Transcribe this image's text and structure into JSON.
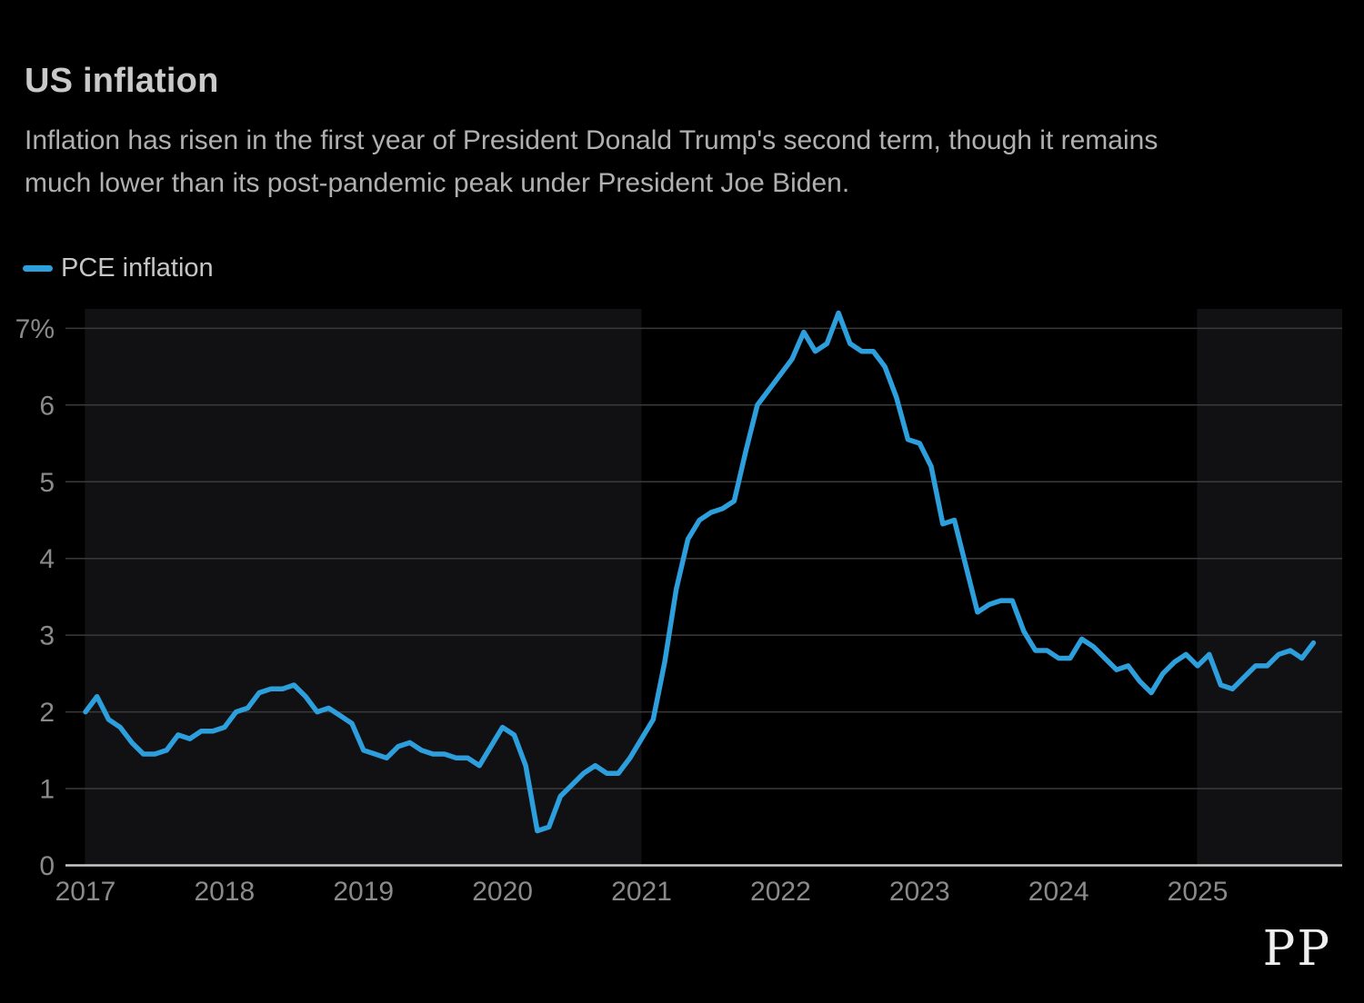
{
  "header": {
    "title": "US inflation",
    "subtitle_lines": [
      "Inflation has risen in the first year of President Donald Trump's second term, though it remains",
      "much lower than its post-pandemic peak under President Joe Biden."
    ]
  },
  "legend": {
    "label": "PCE inflation"
  },
  "logo": {
    "text": "PP"
  },
  "colors": {
    "background": "#000000",
    "line": "#2d9fdd",
    "panel": "#111113",
    "grid": "#3a3a3a",
    "baseline": "#c9c9c9",
    "axis_text": "#8a8a8a",
    "title": "#c9c9c9",
    "subtitle": "#b0b0b0"
  },
  "chart_data": {
    "type": "line",
    "title": "US inflation",
    "ylabel": "",
    "xlabel": "",
    "unit": "%",
    "ylim": [
      0,
      7.3
    ],
    "grid": "horizontal",
    "y_ticks": [
      0,
      1,
      2,
      3,
      4,
      5,
      6,
      7
    ],
    "y_tick_labels": [
      "0",
      "1",
      "2",
      "3",
      "4",
      "5",
      "6",
      "7%"
    ],
    "x_tick_labels": [
      "2017",
      "2018",
      "2019",
      "2020",
      "2021",
      "2022",
      "2023",
      "2024",
      "2025"
    ],
    "series": [
      {
        "name": "PCE inflation",
        "start": "2017-01",
        "end": "2025-11",
        "frequency": "monthly",
        "values": [
          2.0,
          2.2,
          1.9,
          1.8,
          1.6,
          1.45,
          1.45,
          1.5,
          1.7,
          1.65,
          1.75,
          1.75,
          1.8,
          2.0,
          2.05,
          2.25,
          2.3,
          2.3,
          2.35,
          2.2,
          2.0,
          2.05,
          1.95,
          1.85,
          1.5,
          1.45,
          1.4,
          1.55,
          1.6,
          1.5,
          1.45,
          1.45,
          1.4,
          1.4,
          1.3,
          1.55,
          1.8,
          1.7,
          1.3,
          0.45,
          0.5,
          0.9,
          1.05,
          1.2,
          1.3,
          1.2,
          1.2,
          1.4,
          1.65,
          1.9,
          2.65,
          3.6,
          4.25,
          4.5,
          4.6,
          4.65,
          4.75,
          5.4,
          6.0,
          6.2,
          6.4,
          6.6,
          6.95,
          6.7,
          6.8,
          7.2,
          6.8,
          6.7,
          6.7,
          6.5,
          6.1,
          5.55,
          5.5,
          5.2,
          4.45,
          4.5,
          3.9,
          3.3,
          3.4,
          3.45,
          3.45,
          3.05,
          2.8,
          2.8,
          2.7,
          2.7,
          2.95,
          2.85,
          2.7,
          2.55,
          2.6,
          2.4,
          2.25,
          2.5,
          2.65,
          2.75,
          2.6,
          2.75,
          2.35,
          2.3,
          2.45,
          2.6,
          2.6,
          2.75,
          2.8,
          2.7,
          2.9
        ]
      }
    ],
    "shaded_periods": [
      {
        "name": "trump-first-term",
        "start_month": 0,
        "end_month": 48
      },
      {
        "name": "trump-second-term",
        "start_month": 96,
        "end_month": 109
      }
    ]
  }
}
